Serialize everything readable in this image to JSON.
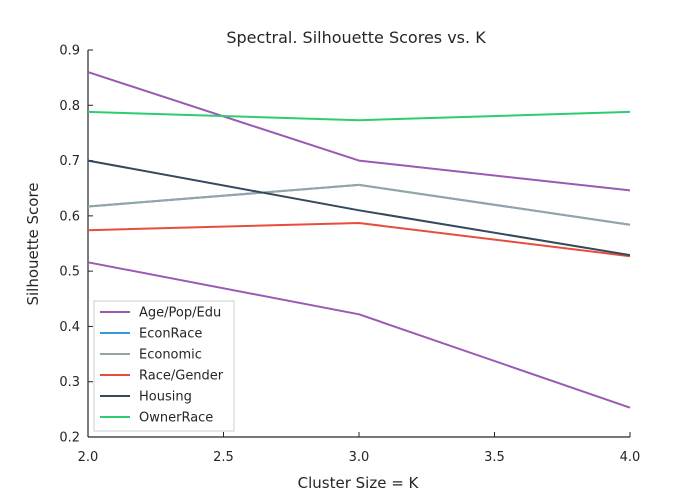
{
  "chart_data": {
    "type": "line",
    "title": "Spectral. Silhouette Scores vs. K",
    "xlabel": "Cluster Size = K",
    "ylabel": "Silhouette Score",
    "x": [
      2.0,
      3.0,
      4.0
    ],
    "xlim": [
      2.0,
      4.0
    ],
    "ylim": [
      0.2,
      0.9
    ],
    "xticks": [
      "2.0",
      "2.5",
      "3.0",
      "3.5",
      "4.0"
    ],
    "yticks": [
      "0.2",
      "0.3",
      "0.4",
      "0.5",
      "0.6",
      "0.7",
      "0.8",
      "0.9"
    ],
    "grid": false,
    "legend_position": "bottom-left",
    "series": [
      {
        "name": "Age/Pop/Edu",
        "color": "#9b59b6",
        "values": [
          0.86,
          0.7,
          0.646
        ]
      },
      {
        "name": "Age/Pop/Edu",
        "color": "#9b59b6",
        "values": [
          0.516,
          0.422,
          0.253
        ],
        "legend": false
      },
      {
        "name": "EconRace",
        "color": "#3498db",
        "values": [
          0.617,
          0.656,
          0.584
        ]
      },
      {
        "name": "Economic",
        "color": "#95a5a6",
        "values": [
          0.617,
          0.656,
          0.584
        ]
      },
      {
        "name": "Race/Gender",
        "color": "#e74c3c",
        "values": [
          0.574,
          0.587,
          0.527
        ]
      },
      {
        "name": "Housing",
        "color": "#34495e",
        "values": [
          0.7,
          0.61,
          0.529
        ]
      },
      {
        "name": "OwnerRace",
        "color": "#2ecc71",
        "values": [
          0.788,
          0.773,
          0.788
        ]
      }
    ]
  }
}
